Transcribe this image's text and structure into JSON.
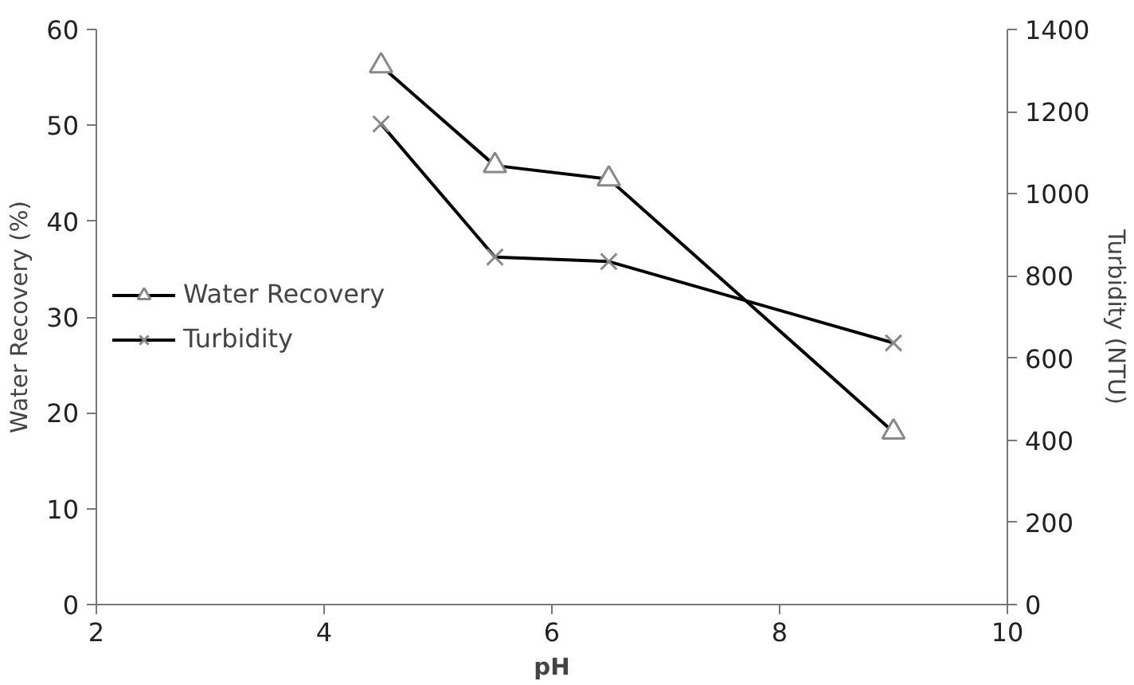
{
  "chart_data": {
    "type": "line",
    "xlabel": "pH",
    "ylabel": "Water Recovery (%)",
    "y2label": "Turbidity (NTU)",
    "xlim": [
      2,
      10
    ],
    "xticks": [
      2,
      4,
      6,
      8,
      10
    ],
    "ylim": [
      0,
      60
    ],
    "yticks": [
      0,
      10,
      20,
      30,
      40,
      50,
      60
    ],
    "y2lim": [
      0,
      1400
    ],
    "y2ticks": [
      0,
      200,
      400,
      600,
      800,
      1000,
      1200,
      1400
    ],
    "x": [
      4.5,
      5.5,
      6.5,
      9
    ],
    "series": [
      {
        "name": "Water Recovery",
        "color": "#000000",
        "marker": "triangle",
        "values": [
          56.2,
          45.8,
          44.4,
          18.0
        ]
      },
      {
        "name": "Turbidity",
        "color": "#000000",
        "marker": "cross",
        "axis": "y2",
        "values": [
          1170,
          846,
          835,
          637
        ]
      }
    ],
    "legend": "left",
    "grid": false,
    "line_style": "solid"
  }
}
